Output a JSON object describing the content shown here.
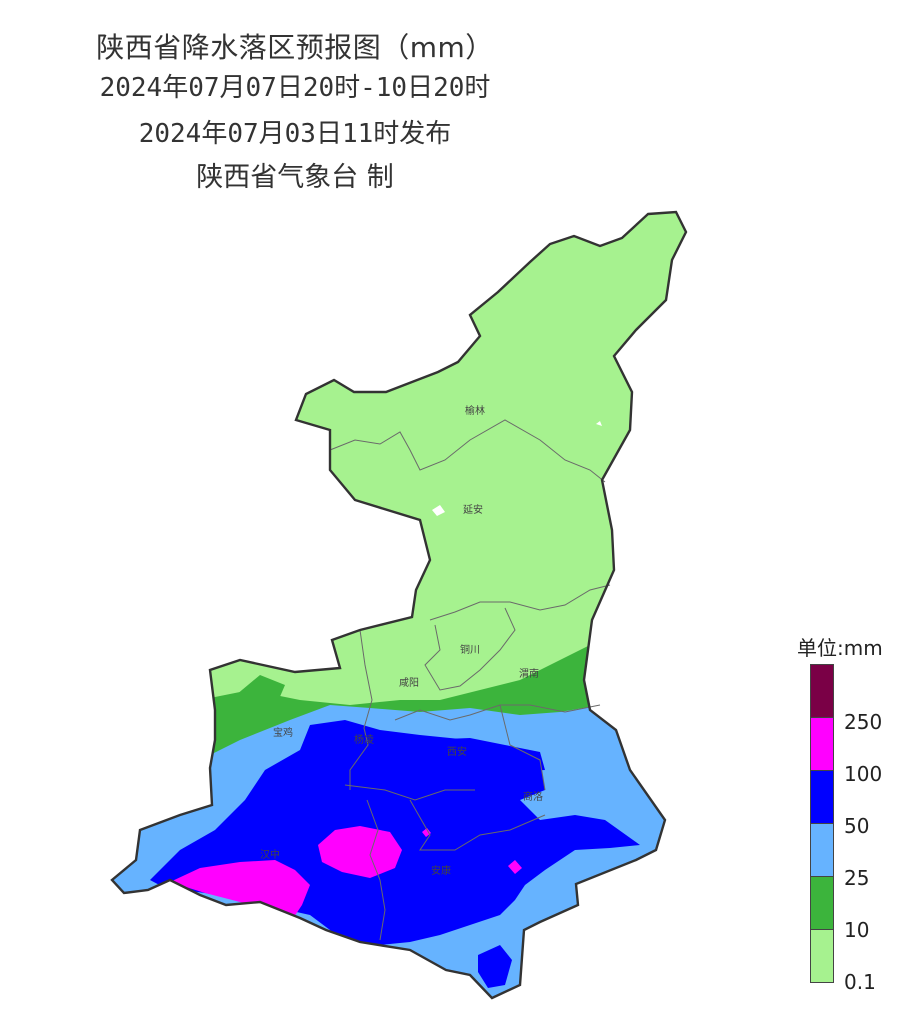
{
  "title": {
    "line1": "陕西省降水落区预报图（mm）",
    "line2": "2024年07月07日20时-10日20时",
    "line3": "2024年07月03日11时发布",
    "line4": "陕西省气象台 制"
  },
  "cities": {
    "yulin": "榆林",
    "yanan": "延安",
    "tongchuan": "铜川",
    "weinan": "渭南",
    "xianyang": "咸阳",
    "baoji": "宝鸡",
    "yangling": "杨凌",
    "xian": "西安",
    "shangluo": "商洛",
    "hanzhong": "汉中",
    "ankang": "安康"
  },
  "legend": {
    "title": "单位:mm",
    "levels": [
      {
        "label": "",
        "color": "#7a0046"
      },
      {
        "label": "250",
        "color": "#ff00ff"
      },
      {
        "label": "100",
        "color": "#0000ff"
      },
      {
        "label": "50",
        "color": "#66b3ff"
      },
      {
        "label": "25",
        "color": "#3cb43c"
      },
      {
        "label": "10",
        "color": "#a6f28f"
      },
      {
        "label": "0.1",
        "color": ""
      }
    ]
  },
  "colors": {
    "light_green": "#a6f28f",
    "green": "#3cb43c",
    "light_blue": "#66b3ff",
    "blue": "#0000ff",
    "magenta": "#ff00ff",
    "purple": "#7a0046"
  }
}
